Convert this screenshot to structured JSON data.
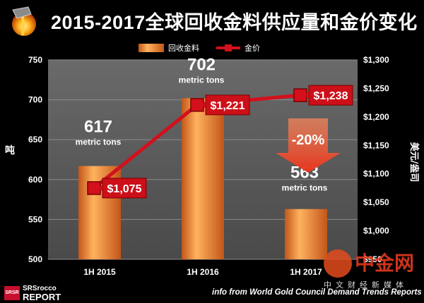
{
  "header": {
    "title": "2015-2017全球回收金料供应量和金价变化",
    "logo_icon": "gold-pour-icon"
  },
  "legend": {
    "bar_label": "回收金料",
    "line_label": "金价"
  },
  "colors": {
    "bar_top": "#ffb25e",
    "bar_bottom": "#c2561a",
    "line": "#d3101c",
    "callout": "#cc0f18",
    "drop_arrow": "#e5331c",
    "plot_bg": "#595959",
    "grid": "#8c8c8c"
  },
  "chart_data": {
    "type": "bar",
    "title": "2015-2017全球回收金料供应量和金价变化",
    "categories": [
      "1H 2015",
      "1H 2016",
      "1H 2017"
    ],
    "series": [
      {
        "name": "回收金料",
        "type": "bar",
        "axis": "left",
        "values": [
          617,
          702,
          563
        ],
        "labels": [
          "617",
          "702",
          "563"
        ],
        "unit_label": "metric tons"
      },
      {
        "name": "金价",
        "type": "line",
        "axis": "right",
        "values": [
          1075,
          1221,
          1238
        ],
        "labels": [
          "$1,075",
          "$1,221",
          "$1,238"
        ]
      }
    ],
    "ylabel_left": "吨",
    "ylabel_right": "美元/盎司",
    "ylim_left": [
      500,
      750
    ],
    "ylim_right": [
      950,
      1300
    ],
    "yticks_left": [
      500,
      550,
      600,
      650,
      700,
      750
    ],
    "yticks_right": [
      "$950",
      "$1,000",
      "$1,050",
      "$1,100",
      "$1,150",
      "$1,200",
      "$1,250",
      "$1,300"
    ],
    "yticks_right_values": [
      950,
      1000,
      1050,
      1100,
      1150,
      1200,
      1250,
      1300
    ],
    "grid": true,
    "legend_position": "top-center",
    "annotations": [
      {
        "text": "-20%",
        "type": "down-arrow",
        "between": [
          "1H 2016",
          "1H 2017"
        ]
      }
    ]
  },
  "footer": {
    "source": "info from World Gold Council Demand Trends Reports",
    "brand_line1": "SRSrocco",
    "brand_line2": "REPORT",
    "brand_badge": "SRSR"
  },
  "watermark": {
    "name": "中金网",
    "sub": "中文财经新媒体",
    "icon": "cngold-logo-icon"
  }
}
